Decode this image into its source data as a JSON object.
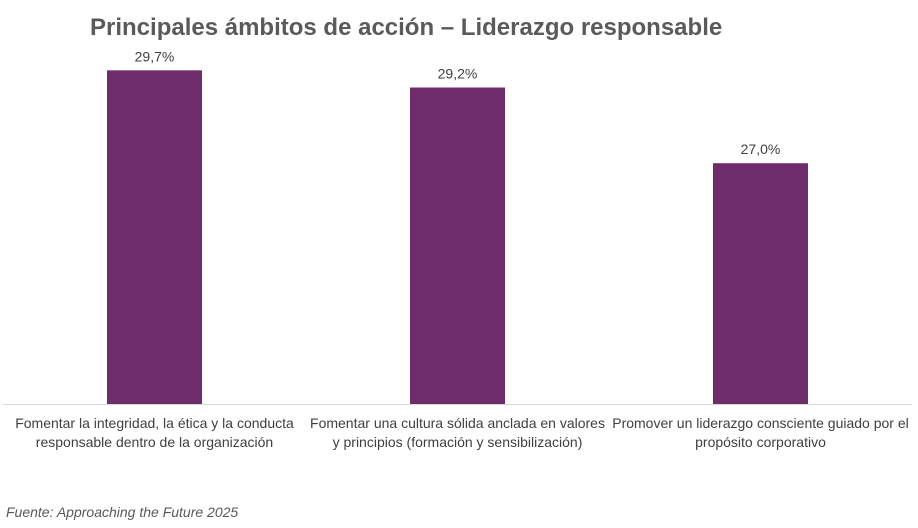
{
  "chart_data": {
    "type": "bar",
    "title": "Principales ámbitos de acción – Liderazgo responsable",
    "categories": [
      "Fomentar la integridad, la ética y la conducta responsable dentro de la organización",
      "Fomentar una cultura sólida anclada en valores y principios (formación y sensibilización)",
      "Promover un liderazgo consciente guiado por el propósito corporativo"
    ],
    "values": [
      29.7,
      29.2,
      27.0
    ],
    "data_labels": [
      "29,7%",
      "29,2%",
      "27,0%"
    ],
    "ylim": [
      20,
      30
    ],
    "grid": false,
    "legend": "none",
    "bar_color": "#6f2c6b",
    "axis_color": "#d9d9d9",
    "source": "Fuente: Approaching the Future 2025"
  }
}
